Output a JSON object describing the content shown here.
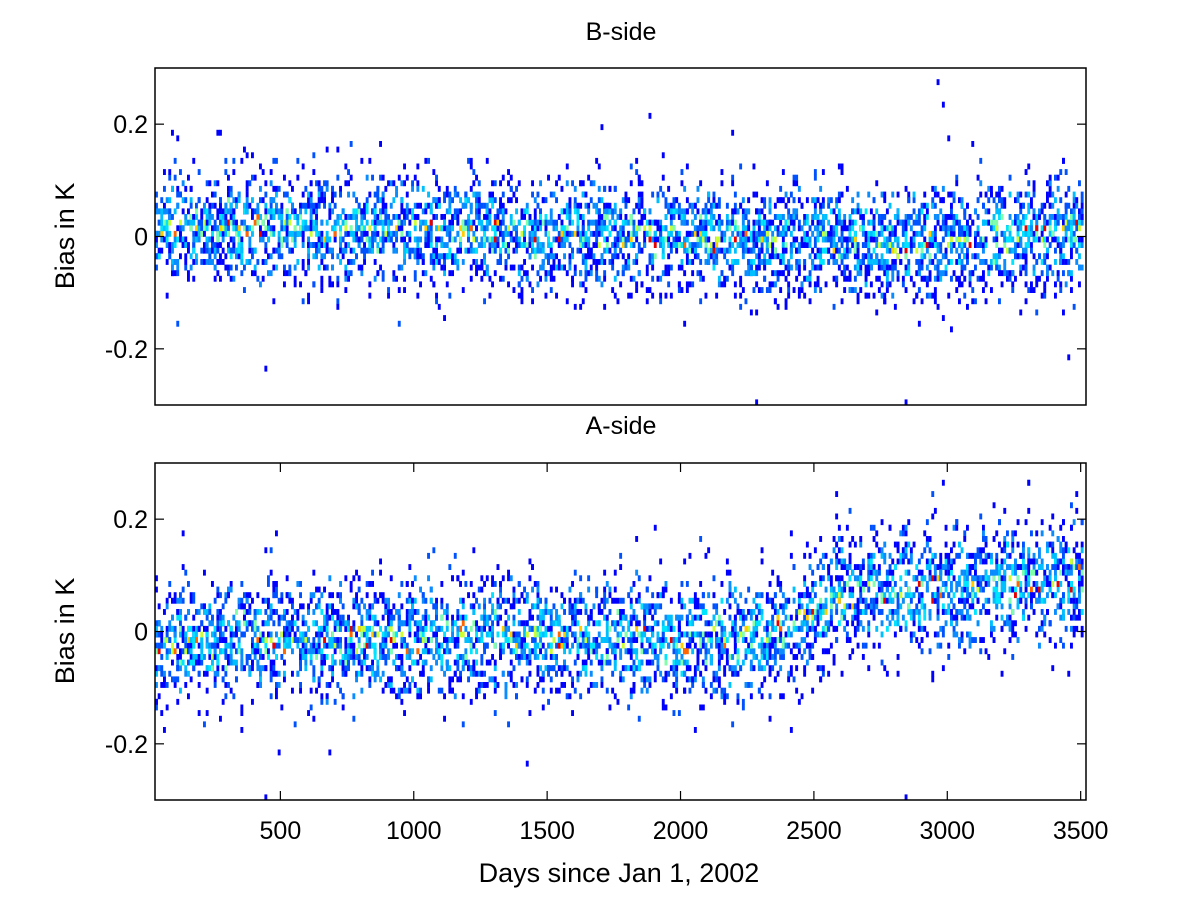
{
  "chart_data": [
    {
      "type": "heatmap",
      "title": "B-side",
      "xlabel": "",
      "ylabel": "Bias in K",
      "xlim": [
        30,
        3520
      ],
      "ylim": [
        -0.3,
        0.3
      ],
      "x_ticks": [],
      "y_ticks": [
        0.2,
        0,
        -0.2
      ],
      "y_tick_labels": [
        "0.2",
        "0",
        "-0.2"
      ],
      "grid": false,
      "legend": "none",
      "colormap": "jet",
      "cell_width_days": 20,
      "cell_height_k": 0.01,
      "drift": [
        [
          30,
          0.02
        ],
        [
          800,
          0.02
        ],
        [
          1500,
          0.01
        ],
        [
          2200,
          0.0
        ],
        [
          2800,
          -0.01
        ],
        [
          3520,
          0.01
        ]
      ],
      "spread_k": 0.05,
      "stray_points": [
        [
          90,
          0.19
        ],
        [
          260,
          0.19
        ],
        [
          440,
          -0.23
        ],
        [
          1700,
          0.2
        ],
        [
          1880,
          0.22
        ],
        [
          2190,
          0.19
        ],
        [
          2280,
          -0.29
        ],
        [
          2840,
          -0.29
        ],
        [
          2960,
          0.28
        ],
        [
          2980,
          0.24
        ],
        [
          3000,
          0.18
        ],
        [
          3450,
          -0.21
        ]
      ]
    },
    {
      "type": "heatmap",
      "title": "A-side",
      "xlabel": "Days since Jan 1, 2002",
      "ylabel": "Bias in K",
      "xlim": [
        30,
        3520
      ],
      "ylim": [
        -0.3,
        0.3
      ],
      "x_ticks": [
        500,
        1000,
        1500,
        2000,
        2500,
        3000,
        3500
      ],
      "x_tick_labels": [
        "500",
        "1000",
        "1500",
        "2000",
        "2500",
        "3000",
        "3500"
      ],
      "y_ticks": [
        0.2,
        0,
        -0.2
      ],
      "y_tick_labels": [
        "0.2",
        "0",
        "-0.2"
      ],
      "grid": false,
      "legend": "none",
      "colormap": "jet",
      "cell_width_days": 20,
      "cell_height_k": 0.01,
      "drift": [
        [
          30,
          -0.02
        ],
        [
          700,
          -0.01
        ],
        [
          1500,
          0.0
        ],
        [
          2000,
          -0.01
        ],
        [
          2300,
          -0.01
        ],
        [
          2600,
          0.07
        ],
        [
          3000,
          0.08
        ],
        [
          3520,
          0.1
        ]
      ],
      "spread_k": 0.055,
      "stray_points": [
        [
          440,
          0.15
        ],
        [
          440,
          -0.29
        ],
        [
          680,
          -0.21
        ],
        [
          1420,
          -0.23
        ],
        [
          1900,
          0.19
        ],
        [
          2580,
          0.25
        ],
        [
          2840,
          -0.29
        ],
        [
          2980,
          0.27
        ],
        [
          3300,
          0.27
        ],
        [
          3480,
          0.25
        ]
      ]
    }
  ]
}
